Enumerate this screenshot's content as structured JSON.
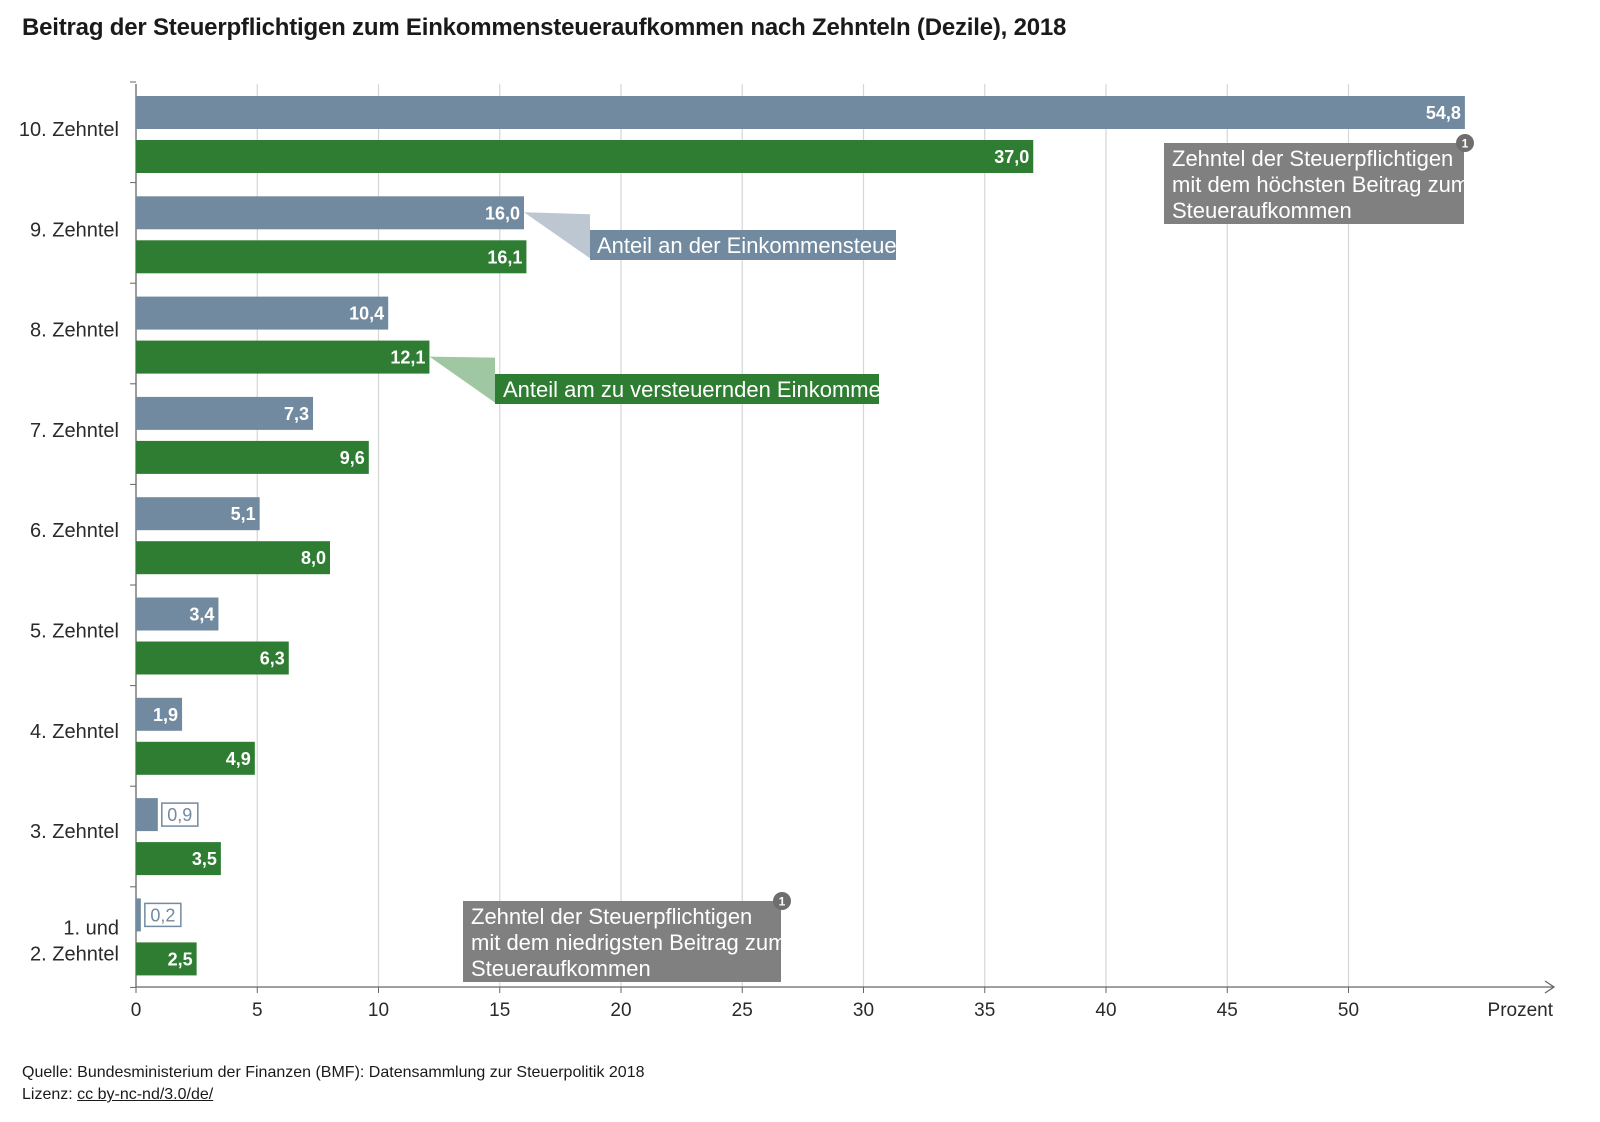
{
  "title": "Beitrag der Steuerpflichtigen zum Einkommensteueraufkommen nach Zehnteln (Dezile), 2018",
  "colors": {
    "grey_series": "#728aa0",
    "green_series": "#2e7d32",
    "annotation_box": "#808080",
    "grid": "#d6d6d6"
  },
  "chart_data": {
    "type": "bar",
    "orientation": "horizontal",
    "categories": [
      "10. Zehntel",
      "9. Zehntel",
      "8. Zehntel",
      "7. Zehntel",
      "6. Zehntel",
      "5. Zehntel",
      "4. Zehntel",
      "3. Zehntel",
      [
        "1. und",
        "2. Zehntel"
      ]
    ],
    "series": [
      {
        "name": "Anteil an der Einkommensteuer",
        "color": "#728aa0",
        "values": [
          54.8,
          16.0,
          10.4,
          7.3,
          5.1,
          3.4,
          1.9,
          0.9,
          0.2
        ],
        "labels": [
          "54,8",
          "16,0",
          "10,4",
          "7,3",
          "5,1",
          "3,4",
          "1,9",
          "0,9",
          "0,2"
        ]
      },
      {
        "name": "Anteil am zu versteuernden Einkommen",
        "color": "#2e7d32",
        "values": [
          37.0,
          16.1,
          12.1,
          9.6,
          8.0,
          6.3,
          4.9,
          3.5,
          2.5
        ],
        "labels": [
          "37,0",
          "16,1",
          "12,1",
          "9,6",
          "8,0",
          "6,3",
          "4,9",
          "3,5",
          "2,5"
        ]
      }
    ],
    "x_ticks": [
      0,
      5,
      10,
      15,
      20,
      25,
      30,
      35,
      40,
      45,
      50
    ],
    "xlabel": "Prozent",
    "xlim": [
      0,
      58
    ],
    "grid": true,
    "annotations": [
      {
        "lines": [
          "Zehntel der Steuerpflichtigen",
          "mit dem höchsten Beitrag zum",
          "Steueraufkommen"
        ],
        "marker": "1"
      },
      {
        "lines": [
          "Zehntel der Steuerpflichtigen",
          "mit dem niedrigsten Beitrag zum",
          "Steueraufkommen"
        ],
        "marker": "1"
      }
    ]
  },
  "footer": {
    "source": "Quelle: Bundesministerium der Finanzen (BMF): Datensammlung zur Steuerpolitik 2018",
    "license_prefix": "Lizenz: ",
    "license_link": "cc by-nc-nd/3.0/de/"
  }
}
